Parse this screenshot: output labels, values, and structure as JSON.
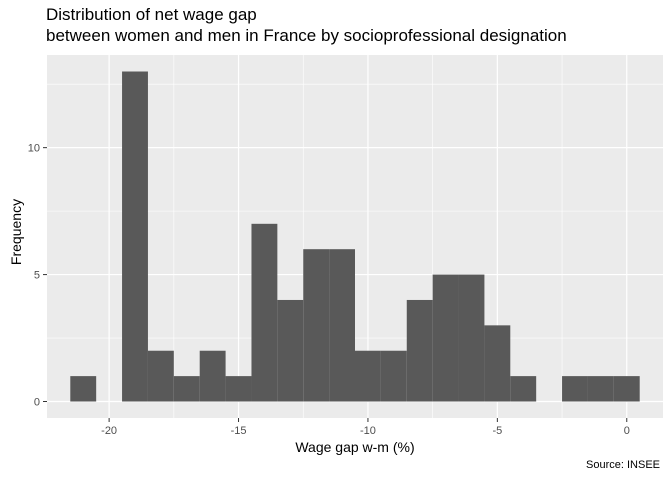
{
  "chart_data": {
    "type": "bar",
    "title": "Distribution of net wage gap",
    "subtitle": "between women and men in France by socioprofessional designation",
    "xlabel": "Wage gap w-m (%)",
    "ylabel": "Frequency",
    "caption": "Source: INSEE",
    "xlim": [
      -22.4,
      1.4
    ],
    "ylim": [
      -0.65,
      13.65
    ],
    "x_ticks": [
      -20,
      -15,
      -10,
      -5,
      0
    ],
    "x_tick_labels": [
      "-20",
      "-15",
      "-10",
      "-5",
      "0"
    ],
    "y_ticks": [
      0,
      5,
      10
    ],
    "y_tick_labels": [
      "0",
      "5",
      "10"
    ],
    "grid": true,
    "bin_width": 1,
    "bins": [
      {
        "start": -21.5,
        "end": -20.5,
        "count": 1
      },
      {
        "start": -20.5,
        "end": -19.5,
        "count": 0
      },
      {
        "start": -19.5,
        "end": -18.5,
        "count": 13
      },
      {
        "start": -18.5,
        "end": -17.5,
        "count": 2
      },
      {
        "start": -17.5,
        "end": -16.5,
        "count": 1
      },
      {
        "start": -16.5,
        "end": -15.5,
        "count": 2
      },
      {
        "start": -15.5,
        "end": -14.5,
        "count": 1
      },
      {
        "start": -14.5,
        "end": -13.5,
        "count": 7
      },
      {
        "start": -13.5,
        "end": -12.5,
        "count": 4
      },
      {
        "start": -12.5,
        "end": -11.5,
        "count": 6
      },
      {
        "start": -11.5,
        "end": -10.5,
        "count": 6
      },
      {
        "start": -10.5,
        "end": -9.5,
        "count": 2
      },
      {
        "start": -9.5,
        "end": -8.5,
        "count": 2
      },
      {
        "start": -8.5,
        "end": -7.5,
        "count": 4
      },
      {
        "start": -7.5,
        "end": -6.5,
        "count": 5
      },
      {
        "start": -6.5,
        "end": -5.5,
        "count": 5
      },
      {
        "start": -5.5,
        "end": -4.5,
        "count": 3
      },
      {
        "start": -4.5,
        "end": -3.5,
        "count": 1
      },
      {
        "start": -3.5,
        "end": -2.5,
        "count": 0
      },
      {
        "start": -2.5,
        "end": -1.5,
        "count": 1
      },
      {
        "start": -1.5,
        "end": -0.5,
        "count": 1
      },
      {
        "start": -0.5,
        "end": 0.5,
        "count": 1
      }
    ],
    "colors": {
      "bar": "#595959",
      "panel": "#ebebeb",
      "grid_major": "#ffffff",
      "tick_text": "#4d4d4d"
    }
  }
}
